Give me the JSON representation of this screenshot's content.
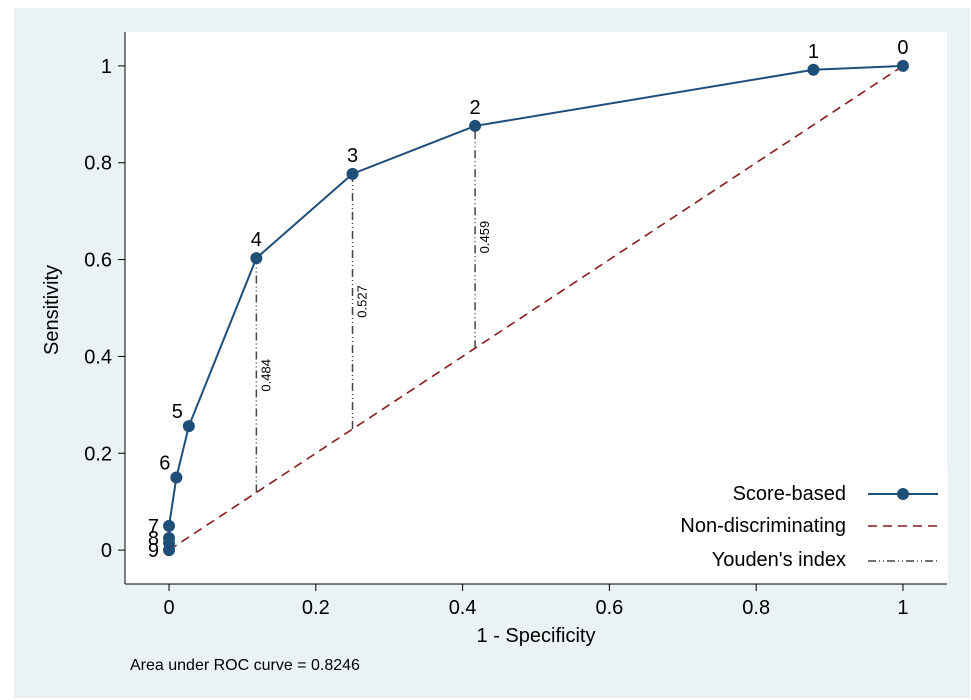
{
  "chart_data": {
    "type": "line",
    "xlabel": "1 - Specificity",
    "ylabel": "Sensitivity",
    "xlim": [
      -0.06,
      1.06
    ],
    "ylim": [
      -0.07,
      1.07
    ],
    "xticks": [
      0,
      0.2,
      0.4,
      0.6,
      0.8,
      1
    ],
    "xtick_labels": [
      "0",
      "0.2",
      "0.4",
      "0.6",
      "0.8",
      "1"
    ],
    "yticks": [
      0,
      0.2,
      0.4,
      0.6,
      0.8,
      1
    ],
    "ytick_labels": [
      "0",
      "0.2",
      "0.4",
      "0.6",
      "0.8",
      "1"
    ],
    "grid": false,
    "legend_position": "bottom-right",
    "note": "Area under ROC curve = 0.8246",
    "series": [
      {
        "name": "Score-based",
        "style": "solid-markers",
        "color": "#1f4e79",
        "x": [
          0,
          0,
          0,
          0,
          0.01,
          0.027,
          0.119,
          0.25,
          0.417,
          0.878,
          1
        ],
        "y": [
          0,
          0.015,
          0.025,
          0.05,
          0.15,
          0.256,
          0.603,
          0.777,
          0.876,
          0.992,
          1
        ],
        "point_labels": [
          "9",
          "",
          "8",
          "7",
          "6",
          "5",
          "4",
          "3",
          "2",
          "1",
          "0"
        ]
      },
      {
        "name": "Non-discriminating",
        "style": "dashed",
        "color": "#8b1a1a",
        "x": [
          0,
          1
        ],
        "y": [
          0,
          1
        ]
      },
      {
        "name": "Youden's index",
        "style": "dash-dot",
        "color": "#444444",
        "segments": [
          {
            "x": 0.119,
            "y0": 0.119,
            "y1": 0.603,
            "label": "0.484"
          },
          {
            "x": 0.25,
            "y0": 0.25,
            "y1": 0.777,
            "label": "0.527"
          },
          {
            "x": 0.417,
            "y0": 0.417,
            "y1": 0.876,
            "label": "0.459"
          }
        ]
      }
    ]
  }
}
